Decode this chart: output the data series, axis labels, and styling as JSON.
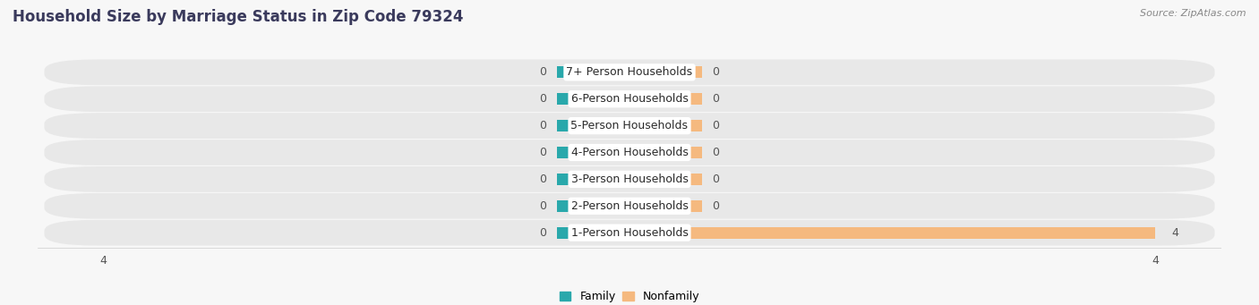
{
  "title": "Household Size by Marriage Status in Zip Code 79324",
  "source": "Source: ZipAtlas.com",
  "categories": [
    "7+ Person Households",
    "6-Person Households",
    "5-Person Households",
    "4-Person Households",
    "3-Person Households",
    "2-Person Households",
    "1-Person Households"
  ],
  "family_values": [
    0,
    0,
    0,
    0,
    0,
    0,
    0
  ],
  "nonfamily_values": [
    0,
    0,
    0,
    0,
    0,
    0,
    4
  ],
  "family_color": "#29a8ab",
  "nonfamily_color": "#f5b97f",
  "xlim": [
    -4.5,
    4.5
  ],
  "max_val": 4,
  "bg_color": "#f7f7f7",
  "row_bg_light": "#ececec",
  "row_bg_dark": "#e0e0e0",
  "title_fontsize": 12,
  "source_fontsize": 8,
  "label_fontsize": 9,
  "value_fontsize": 9,
  "legend_fontsize": 9,
  "stub_size": 0.55
}
